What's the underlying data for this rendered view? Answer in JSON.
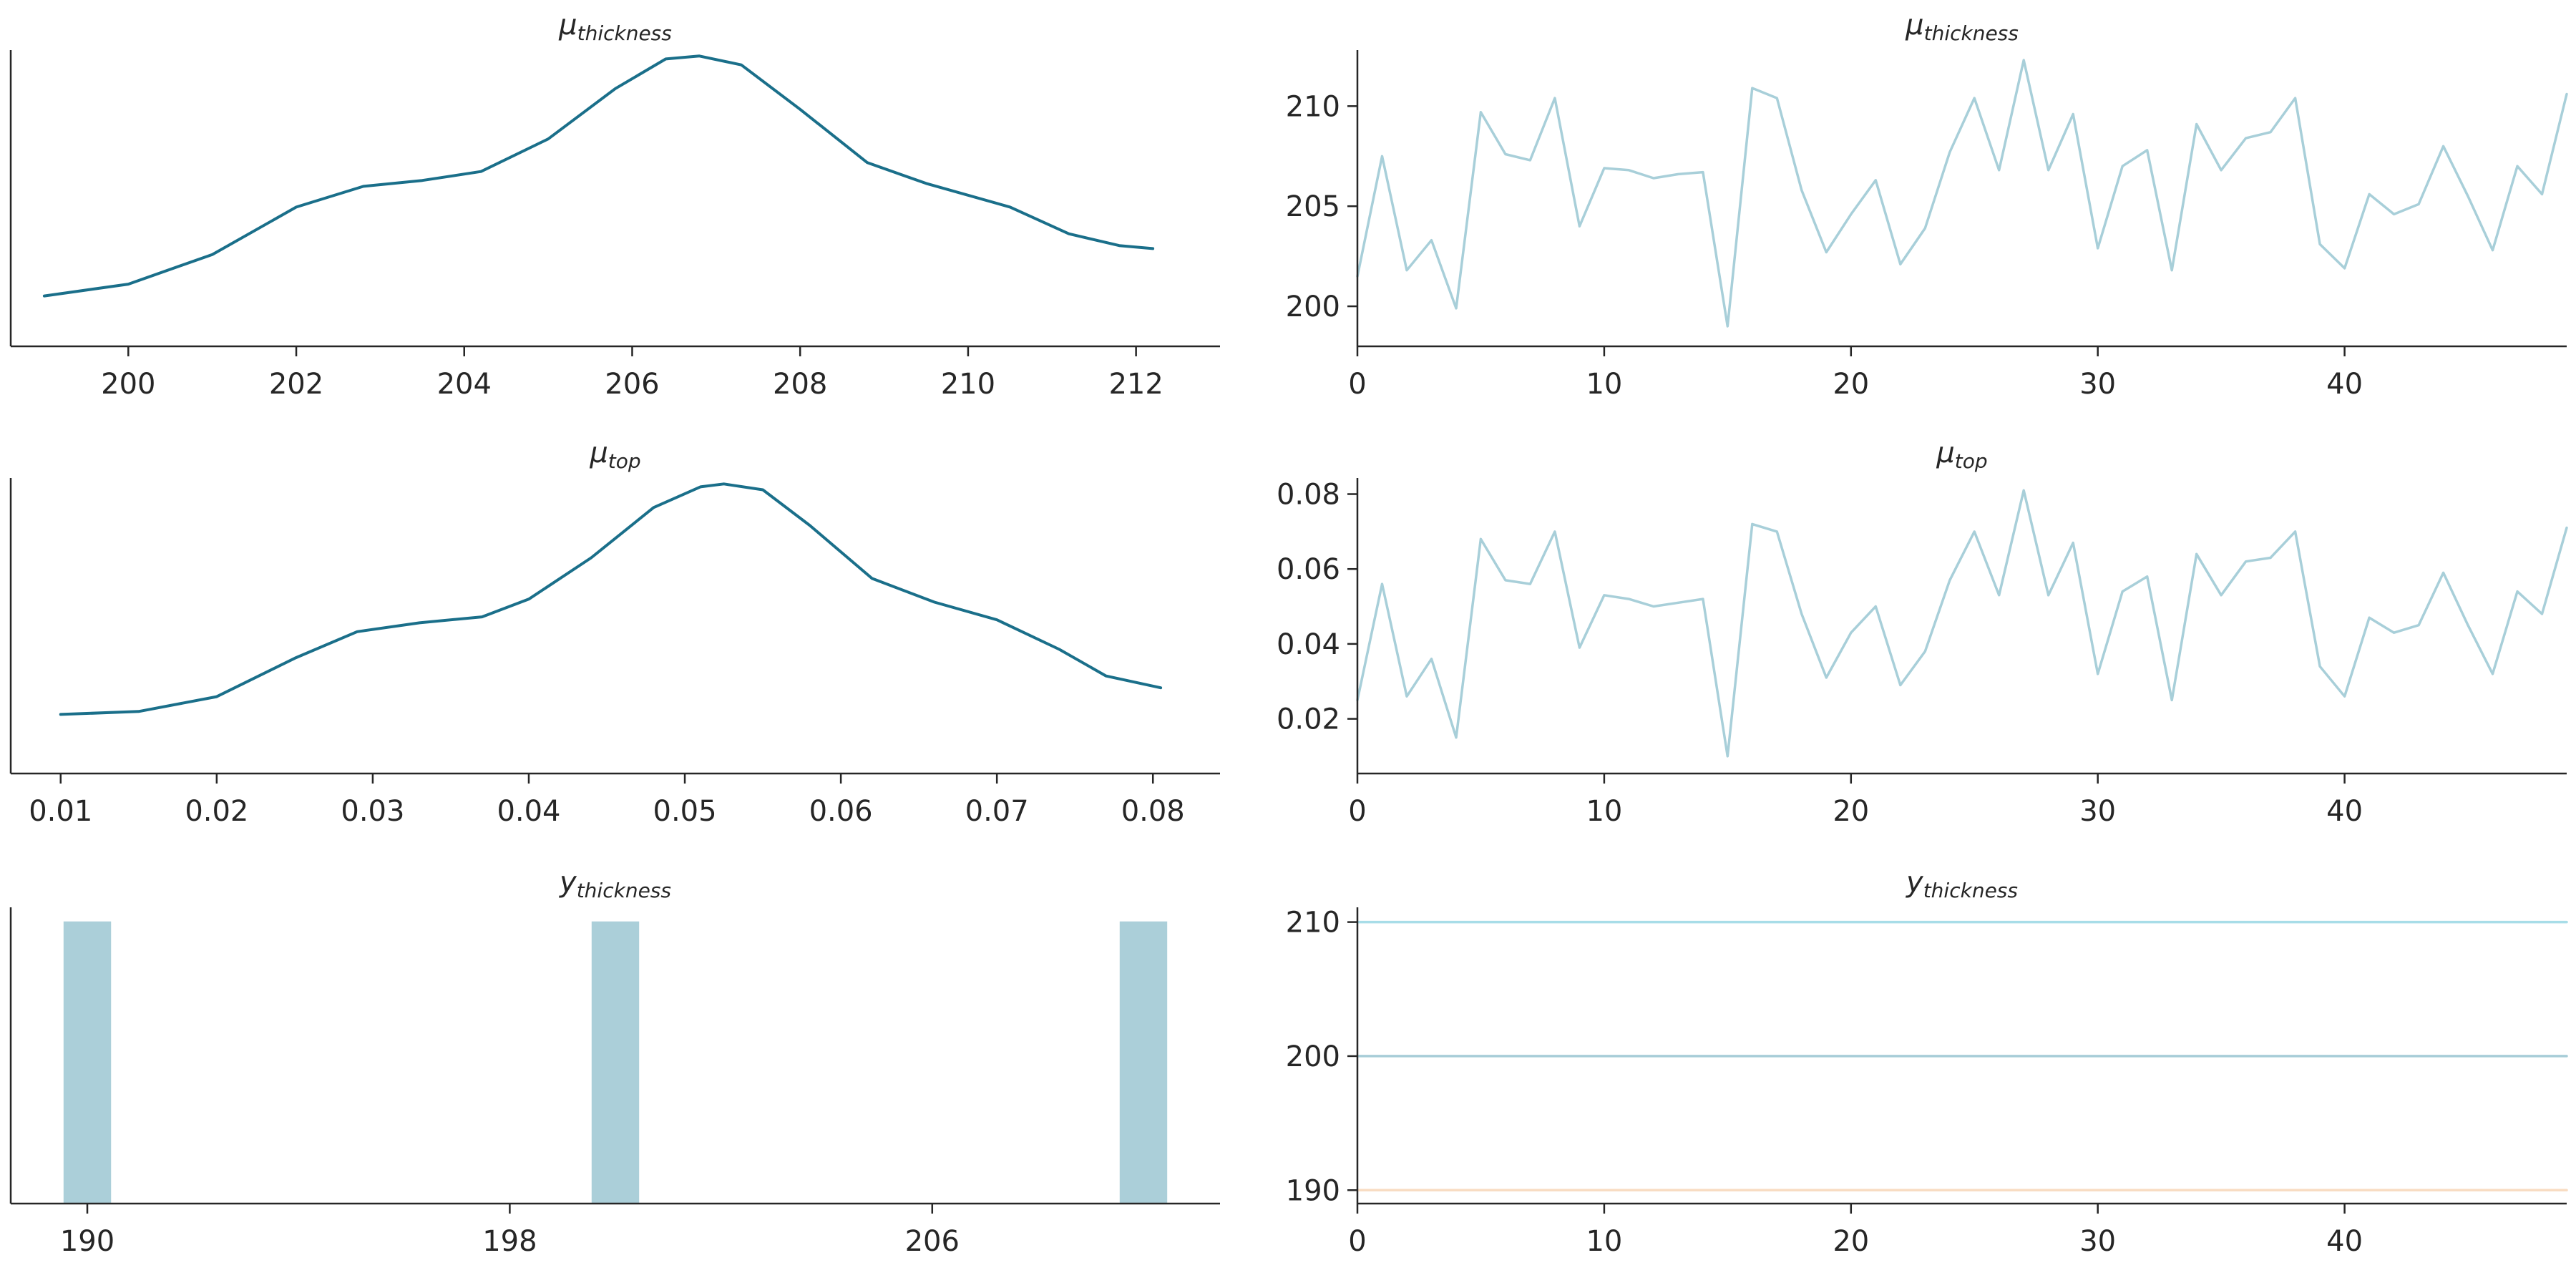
{
  "colors": {
    "kde": "#1a6f8a",
    "trace_light": "#a8cfd9",
    "hist": "#abcfd9",
    "obs_210": "#a8dde8",
    "obs_200": "#a8cdd8",
    "obs_190": "#f8dcc2",
    "axis": "#262626"
  },
  "chart_data": [
    {
      "id": "kde-mu-thickness",
      "type": "line",
      "title": {
        "symbol": "μ",
        "subscript": "thickness"
      },
      "xlim": [
        198.6,
        213.0
      ],
      "ylim": [
        0,
        1
      ],
      "xticks": [
        "200",
        "202",
        "204",
        "206",
        "208",
        "210",
        "212"
      ],
      "yticks": [],
      "series": [
        {
          "x": [
            199.0,
            200.0,
            201.0,
            202.0,
            202.8,
            203.5,
            204.2,
            205.0,
            205.8,
            206.4,
            206.8,
            207.3,
            208.0,
            208.8,
            209.5,
            210.5,
            211.2,
            211.8,
            212.2
          ],
          "y": [
            0.17,
            0.21,
            0.31,
            0.47,
            0.54,
            0.56,
            0.59,
            0.7,
            0.87,
            0.97,
            0.98,
            0.95,
            0.8,
            0.62,
            0.55,
            0.47,
            0.38,
            0.34,
            0.33
          ]
        }
      ]
    },
    {
      "id": "trace-mu-thickness",
      "type": "line",
      "title": {
        "symbol": "μ",
        "subscript": "thickness"
      },
      "xlim": [
        0,
        49
      ],
      "ylim": [
        198,
        212.8
      ],
      "xticks": [
        "0",
        "10",
        "20",
        "30",
        "40"
      ],
      "yticks": [
        "200",
        "205",
        "210"
      ],
      "series": [
        {
          "x": [
            0,
            1,
            2,
            3,
            4,
            5,
            6,
            7,
            8,
            9,
            10,
            11,
            12,
            13,
            14,
            15,
            16,
            17,
            18,
            19,
            20,
            21,
            22,
            23,
            24,
            25,
            26,
            27,
            28,
            29,
            30,
            31,
            32,
            33,
            34,
            35,
            36,
            37,
            38,
            39,
            40,
            41,
            42,
            43,
            44,
            45,
            46,
            47,
            48,
            49
          ],
          "y": [
            201.5,
            207.5,
            201.8,
            203.3,
            199.9,
            209.7,
            207.6,
            207.3,
            210.4,
            204.0,
            206.9,
            206.8,
            206.4,
            206.6,
            206.7,
            199.0,
            210.9,
            210.4,
            205.8,
            202.7,
            204.6,
            206.3,
            202.1,
            203.9,
            207.7,
            210.4,
            206.8,
            212.3,
            206.8,
            209.6,
            202.9,
            207.0,
            207.8,
            201.8,
            209.1,
            206.8,
            208.4,
            208.7,
            210.4,
            203.1,
            201.9,
            205.6,
            204.6,
            205.1,
            208.0,
            205.5,
            202.8,
            207.0,
            205.6,
            210.6
          ]
        }
      ]
    },
    {
      "id": "kde-mu-top",
      "type": "line",
      "title": {
        "symbol": "μ",
        "subscript": "top"
      },
      "xlim": [
        0.0068,
        0.0843
      ],
      "ylim": [
        0,
        1
      ],
      "xticks": [
        "0.01",
        "0.02",
        "0.03",
        "0.04",
        "0.05",
        "0.06",
        "0.07",
        "0.08"
      ],
      "yticks": [],
      "series": [
        {
          "x": [
            0.01,
            0.015,
            0.02,
            0.025,
            0.029,
            0.033,
            0.037,
            0.04,
            0.044,
            0.048,
            0.051,
            0.0525,
            0.055,
            0.058,
            0.062,
            0.066,
            0.07,
            0.074,
            0.077,
            0.0805
          ],
          "y": [
            0.2,
            0.21,
            0.26,
            0.39,
            0.48,
            0.51,
            0.53,
            0.59,
            0.73,
            0.9,
            0.97,
            0.98,
            0.96,
            0.84,
            0.66,
            0.58,
            0.52,
            0.42,
            0.33,
            0.29
          ]
        }
      ]
    },
    {
      "id": "trace-mu-top",
      "type": "line",
      "title": {
        "symbol": "μ",
        "subscript": "top"
      },
      "xlim": [
        0,
        49
      ],
      "ylim": [
        0.0054,
        0.0843
      ],
      "xticks": [
        "0",
        "10",
        "20",
        "30",
        "40"
      ],
      "yticks": [
        "0.02",
        "0.04",
        "0.06",
        "0.08"
      ],
      "series": [
        {
          "x": [
            0,
            1,
            2,
            3,
            4,
            5,
            6,
            7,
            8,
            9,
            10,
            11,
            12,
            13,
            14,
            15,
            16,
            17,
            18,
            19,
            20,
            21,
            22,
            23,
            24,
            25,
            26,
            27,
            28,
            29,
            30,
            31,
            32,
            33,
            34,
            35,
            36,
            37,
            38,
            39,
            40,
            41,
            42,
            43,
            44,
            45,
            46,
            47,
            48,
            49
          ],
          "y": [
            0.025,
            0.056,
            0.026,
            0.036,
            0.015,
            0.068,
            0.057,
            0.056,
            0.07,
            0.039,
            0.053,
            0.052,
            0.05,
            0.051,
            0.052,
            0.01,
            0.072,
            0.07,
            0.048,
            0.031,
            0.043,
            0.05,
            0.029,
            0.038,
            0.057,
            0.07,
            0.053,
            0.081,
            0.053,
            0.067,
            0.032,
            0.054,
            0.058,
            0.025,
            0.064,
            0.053,
            0.062,
            0.063,
            0.07,
            0.034,
            0.026,
            0.047,
            0.043,
            0.045,
            0.059,
            0.045,
            0.032,
            0.054,
            0.048,
            0.071
          ]
        }
      ]
    },
    {
      "id": "hist-y-thickness",
      "type": "bar",
      "title": {
        "symbol": "y",
        "subscript": "thickness"
      },
      "xlim": [
        188.55,
        211.45
      ],
      "ylim": [
        0,
        1.05
      ],
      "xticks": [
        "190",
        "198",
        "206"
      ],
      "yticks": [],
      "bar_width": 0.9,
      "series": [
        {
          "x": [
            190,
            200,
            210
          ],
          "values": [
            1,
            1,
            1
          ]
        }
      ]
    },
    {
      "id": "trace-y-thickness",
      "type": "line",
      "title": {
        "symbol": "y",
        "subscript": "thickness"
      },
      "xlim": [
        0,
        49
      ],
      "ylim": [
        189,
        211.1
      ],
      "xticks": [
        "0",
        "10",
        "20",
        "30",
        "40"
      ],
      "yticks": [
        "190",
        "200",
        "210"
      ],
      "series": [
        {
          "color_key": "obs_210",
          "x": [
            0,
            49
          ],
          "y": [
            210,
            210
          ]
        },
        {
          "color_key": "obs_200",
          "x": [
            0,
            49
          ],
          "y": [
            200,
            200
          ]
        },
        {
          "color_key": "obs_190",
          "x": [
            0,
            49
          ],
          "y": [
            190,
            190
          ]
        }
      ]
    }
  ]
}
